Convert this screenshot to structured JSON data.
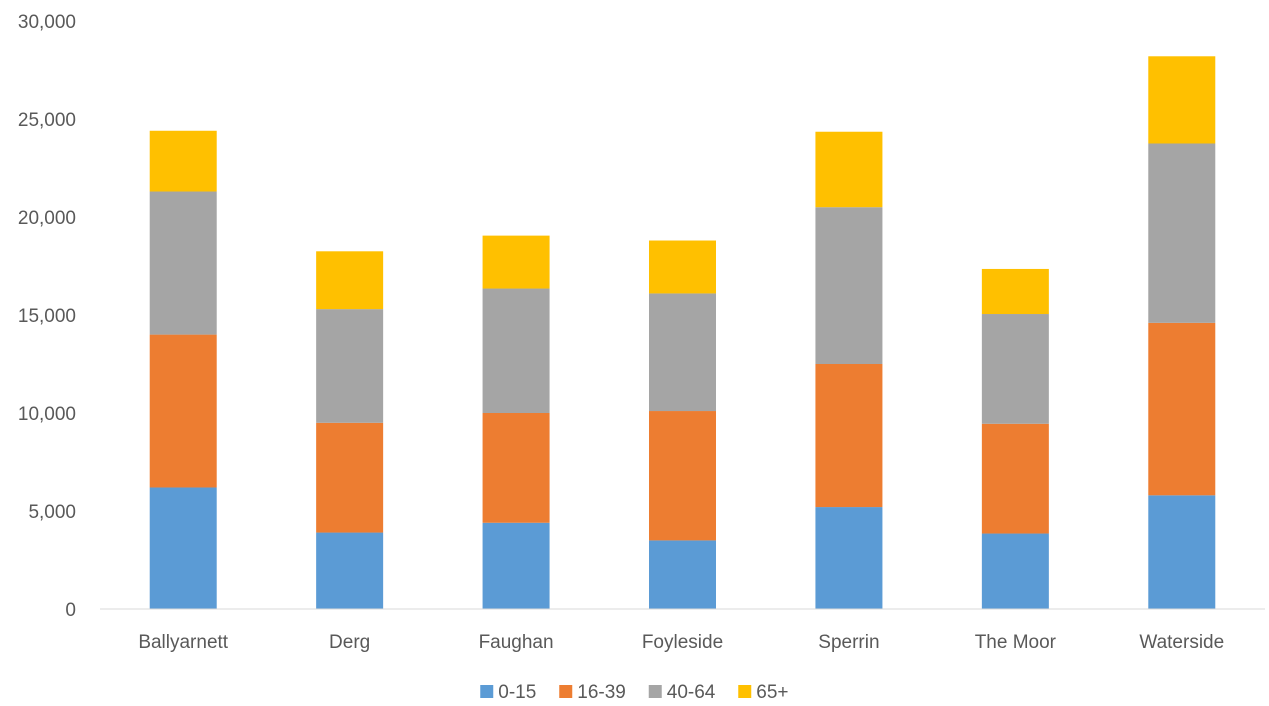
{
  "chart_data": {
    "type": "bar",
    "stacked": true,
    "title": "",
    "xlabel": "",
    "ylabel": "",
    "ylim": [
      0,
      30000
    ],
    "yticks": [
      0,
      5000,
      10000,
      15000,
      20000,
      25000,
      30000
    ],
    "ytick_labels": [
      "0",
      "5,000",
      "10,000",
      "15,000",
      "20,000",
      "25,000",
      "30,000"
    ],
    "grid": false,
    "legend_position": "bottom",
    "categories": [
      "Ballyarnett",
      "Derg",
      "Faughan",
      "Foyleside",
      "Sperrin",
      "The Moor",
      "Waterside"
    ],
    "series": [
      {
        "name": "0-15",
        "color": "#5B9BD5",
        "values": [
          6200,
          3900,
          4400,
          3500,
          5200,
          3850,
          5800
        ]
      },
      {
        "name": "16-39",
        "color": "#ED7D31",
        "values": [
          7800,
          5600,
          5600,
          6600,
          7300,
          5600,
          8800
        ]
      },
      {
        "name": "40-64",
        "color": "#A5A5A5",
        "values": [
          7300,
          5800,
          6350,
          6000,
          8000,
          5600,
          9150
        ]
      },
      {
        "name": "65+",
        "color": "#FFC000",
        "values": [
          3100,
          2950,
          2700,
          2700,
          3850,
          2300,
          4450
        ]
      }
    ]
  }
}
